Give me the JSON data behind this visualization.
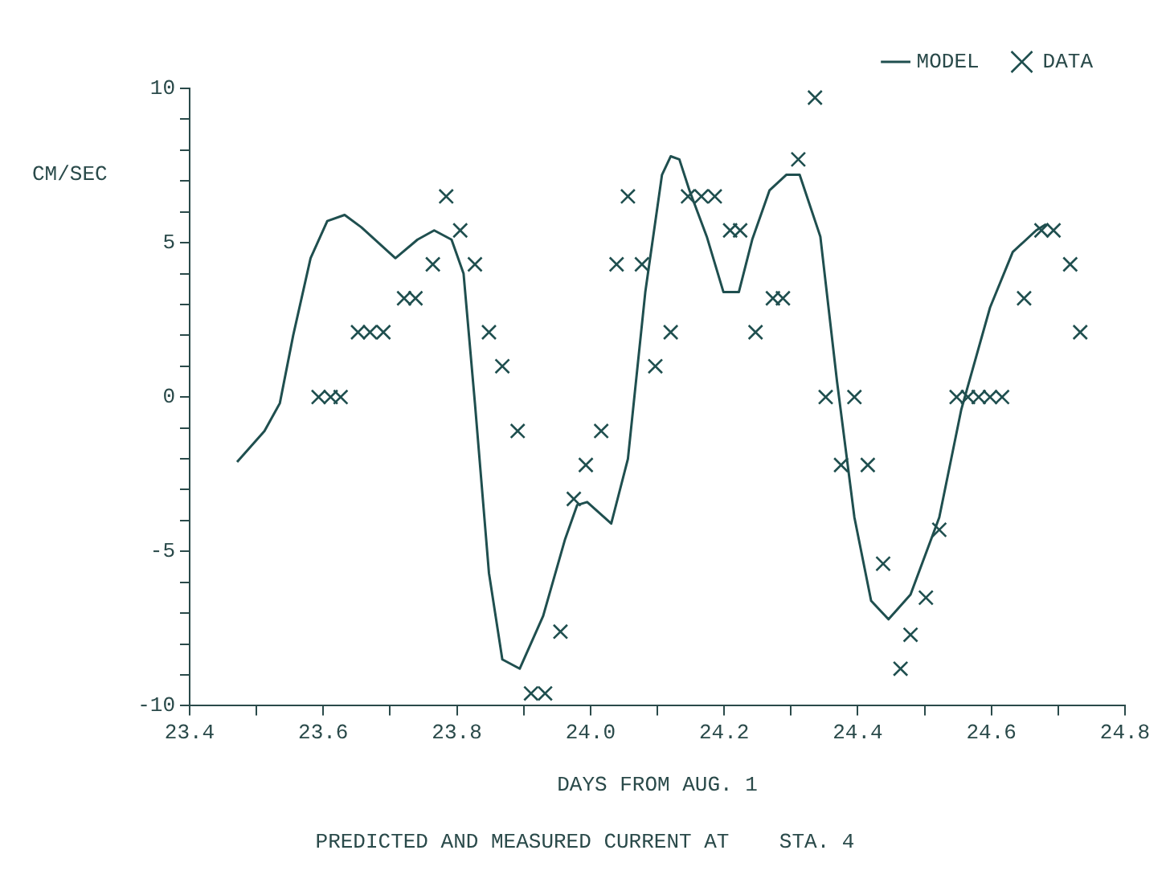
{
  "chart_data": {
    "type": "line",
    "title": "PREDICTED AND MEASURED CURRENT AT    STA. 4",
    "xlabel": "DAYS FROM AUG. 1",
    "ylabel": "CM/SEC",
    "legend": "top right",
    "grid": false,
    "xlim": [
      23.4,
      24.8
    ],
    "xticks": [
      23.4,
      {
        "value": 23.5,
        "label": null
      },
      23.6,
      {
        "value": 23.7,
        "label": null
      },
      23.8,
      {
        "value": 23.9,
        "label": null
      },
      {
        "value": 24,
        "label": "24.0"
      },
      {
        "value": 24.1,
        "label": null
      },
      24.2,
      {
        "value": 24.3,
        "label": null
      },
      24.4,
      {
        "value": 24.5,
        "label": null
      },
      24.6,
      {
        "value": 24.7,
        "label": null
      },
      24.8
    ],
    "ylim": [
      -10,
      10
    ],
    "yticks": [
      -10,
      {
        "value": -9,
        "label": null
      },
      {
        "value": -8,
        "label": null
      },
      {
        "value": -7,
        "label": null
      },
      {
        "value": -6,
        "label": null
      },
      -5,
      {
        "value": -4,
        "label": null
      },
      {
        "value": -3,
        "label": null
      },
      {
        "value": -2,
        "label": null
      },
      {
        "value": -1,
        "label": null
      },
      0,
      {
        "value": 1,
        "label": null
      },
      {
        "value": 2,
        "label": null
      },
      {
        "value": 3,
        "label": null
      },
      {
        "value": 4,
        "label": null
      },
      5,
      {
        "value": 6,
        "label": null
      },
      {
        "value": 7,
        "label": null
      },
      {
        "value": 8,
        "label": null
      },
      {
        "value": 9,
        "label": null
      },
      10
    ],
    "series": [
      {
        "name": "MODEL",
        "marker": "none",
        "line_style": "solid",
        "color": "#1f4f4f",
        "x": [
          23.471,
          23.512,
          23.535,
          23.555,
          23.581,
          23.606,
          23.632,
          23.657,
          23.708,
          23.741,
          23.766,
          23.792,
          23.81,
          23.827,
          23.848,
          23.868,
          23.894,
          23.929,
          23.962,
          23.98,
          23.995,
          24.031,
          24.056,
          24.082,
          24.107,
          24.12,
          24.133,
          24.148,
          24.174,
          24.199,
          24.222,
          24.242,
          24.268,
          24.293,
          24.313,
          24.344,
          24.369,
          24.395,
          24.42,
          24.446,
          24.479,
          24.522,
          24.555,
          24.598,
          24.632,
          24.667,
          24.682
        ],
        "values": [
          -2.1,
          -1.1,
          -0.2,
          2.0,
          4.5,
          5.7,
          5.9,
          5.5,
          4.5,
          5.1,
          5.4,
          5.1,
          4.0,
          -0.2,
          -5.7,
          -8.5,
          -8.8,
          -7.1,
          -4.6,
          -3.5,
          -3.4,
          -4.1,
          -2.0,
          3.4,
          7.2,
          7.8,
          7.7,
          6.7,
          5.2,
          3.4,
          3.4,
          5.1,
          6.7,
          7.2,
          7.2,
          5.2,
          0.5,
          -3.9,
          -6.6,
          -7.2,
          -6.4,
          -3.9,
          -0.4,
          2.9,
          4.7,
          5.4,
          5.6
        ]
      },
      {
        "name": "DATA",
        "type": "scatter",
        "marker": "cross",
        "color": "#1f4f4f",
        "x": [
          23.593,
          23.611,
          23.626,
          23.652,
          23.67,
          23.69,
          23.721,
          23.738,
          23.764,
          23.784,
          23.805,
          23.827,
          23.848,
          23.868,
          23.891,
          23.911,
          23.932,
          23.955,
          23.975,
          23.993,
          24.016,
          24.039,
          24.056,
          24.077,
          24.097,
          24.12,
          24.146,
          24.166,
          24.186,
          24.209,
          24.224,
          24.247,
          24.273,
          24.288,
          24.311,
          24.336,
          24.352,
          24.375,
          24.395,
          24.415,
          24.438,
          24.464,
          24.479,
          24.502,
          24.522,
          24.548,
          24.565,
          24.581,
          24.598,
          24.616,
          24.649,
          24.675,
          24.693,
          24.718,
          24.733
        ],
        "values": [
          0,
          0,
          0,
          2.1,
          2.1,
          2.1,
          3.2,
          3.2,
          4.3,
          6.5,
          5.4,
          4.3,
          2.1,
          1.0,
          -1.1,
          -9.6,
          -9.6,
          -7.6,
          -3.3,
          -2.2,
          -1.1,
          4.3,
          6.5,
          4.3,
          1.0,
          2.1,
          6.5,
          6.5,
          6.5,
          5.4,
          5.4,
          2.1,
          3.2,
          3.2,
          7.7,
          9.7,
          0,
          -2.2,
          0,
          -2.2,
          -5.4,
          -8.8,
          -7.7,
          -6.5,
          -4.3,
          0,
          0,
          0,
          0,
          0,
          3.2,
          5.4,
          5.4,
          4.3,
          2.1
        ]
      }
    ]
  }
}
